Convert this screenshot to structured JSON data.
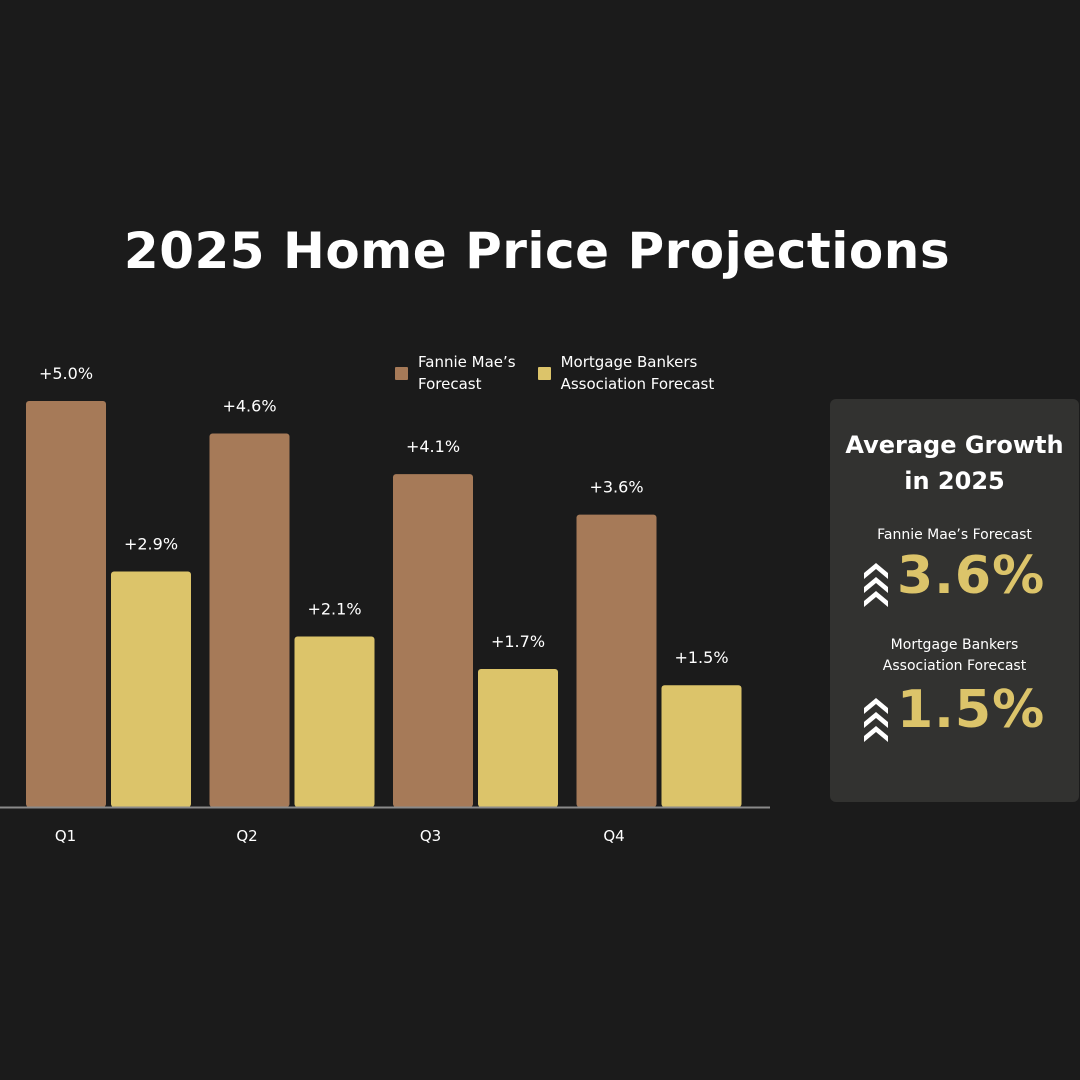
{
  "colors": {
    "background": "#1b1b1b",
    "fannie": "#a67a58",
    "mba": "#dcc46a",
    "panel": "#323230",
    "highlight": "#dcc46a"
  },
  "chart_data": {
    "type": "bar",
    "title": "2025 Home Price Projections",
    "categories": [
      "Q1",
      "Q2",
      "Q3",
      "Q4"
    ],
    "series": [
      {
        "name": "Fannie Mae’s\nForecast",
        "color": "#a67a58",
        "values": [
          5.0,
          4.6,
          4.1,
          3.6
        ],
        "labels": [
          "+5.0%",
          "+4.6%",
          "+4.1%",
          "+3.6%"
        ]
      },
      {
        "name": "Mortgage Bankers\nAssociation Forecast",
        "color": "#dcc46a",
        "values": [
          2.9,
          2.1,
          1.7,
          1.5
        ],
        "labels": [
          "+2.9%",
          "+2.1%",
          "+1.7%",
          "+1.5%"
        ]
      }
    ],
    "ylim": [
      0,
      5.0
    ],
    "legend": "top-center",
    "grid": false
  },
  "panel": {
    "title": "Average Growth\nin 2025",
    "stats": [
      {
        "label": "Fannie Mae’s Forecast",
        "value": "3.6%",
        "icon": "chevrons-up-icon"
      },
      {
        "label": "Mortgage Bankers\nAssociation Forecast",
        "value": "1.5%",
        "icon": "chevrons-up-icon"
      }
    ]
  }
}
